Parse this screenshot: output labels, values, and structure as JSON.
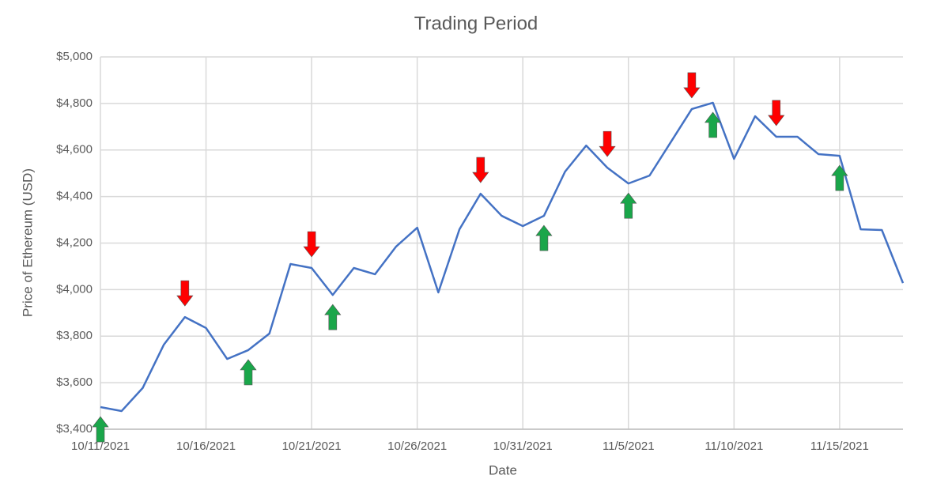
{
  "chart_data": {
    "type": "line",
    "title": "Trading Period",
    "x_label": "Date",
    "y_label": "Price of Ethereum (USD)",
    "categories": [
      "10/11/2021",
      null,
      null,
      null,
      null,
      "10/16/2021",
      null,
      null,
      null,
      null,
      "10/21/2021",
      null,
      null,
      null,
      null,
      "10/26/2021",
      null,
      null,
      null,
      null,
      "10/31/2021",
      null,
      null,
      null,
      null,
      "11/5/2021",
      null,
      null,
      null,
      null,
      "11/10/2021",
      null,
      null,
      null,
      null,
      "11/15/2021",
      null,
      null,
      null
    ],
    "values": [
      3495,
      3478,
      3577,
      3763,
      3882,
      3835,
      3702,
      3740,
      3811,
      4110,
      4093,
      3977,
      4093,
      4066,
      4185,
      4266,
      3988,
      4259,
      4412,
      4317,
      4273,
      4317,
      4507,
      4619,
      4524,
      4456,
      4490,
      4633,
      4776,
      4803,
      4562,
      4745,
      4657,
      4657,
      4582,
      4575,
      4259,
      4256,
      4028
    ],
    "color": "#4472c4",
    "buy_signals": [
      0,
      7,
      11,
      21,
      25,
      29,
      35
    ],
    "buy_color": "#1aa64a",
    "sell_signals": [
      4,
      10,
      18,
      24,
      28,
      32
    ],
    "sell_color": "#ff0000",
    "ylim": [
      3400,
      5000
    ],
    "yticks": [
      {
        "value": 3400,
        "label": "$3,400"
      },
      {
        "value": 3600,
        "label": "$3,600"
      },
      {
        "value": 3800,
        "label": "$3,800"
      },
      {
        "value": 4000,
        "label": "$4,000"
      },
      {
        "value": 4200,
        "label": "$4,200"
      },
      {
        "value": 4400,
        "label": "$4,400"
      },
      {
        "value": 4600,
        "label": "$4,600"
      },
      {
        "value": 4800,
        "label": "$4,800"
      },
      {
        "value": 5000,
        "label": "$5,000"
      }
    ],
    "grid": true
  }
}
